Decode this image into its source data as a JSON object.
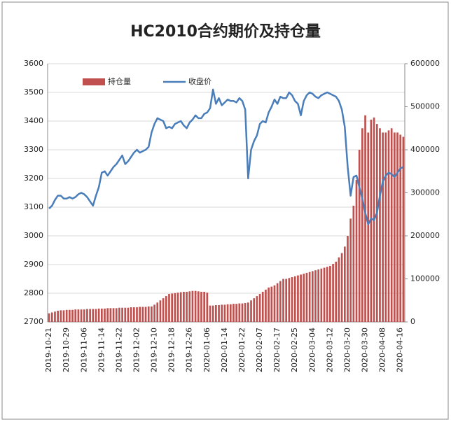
{
  "chart_data": {
    "type": "combo",
    "title": "HC2010合约期价及持仓量",
    "categories": [
      "2019-10-21",
      null,
      null,
      null,
      null,
      null,
      "2019-10-29",
      null,
      null,
      null,
      null,
      null,
      "2019-11-06",
      null,
      null,
      null,
      null,
      null,
      "2019-11-14",
      null,
      null,
      null,
      null,
      null,
      "2019-11-22",
      null,
      null,
      null,
      null,
      null,
      "2019-12-02",
      null,
      null,
      null,
      null,
      null,
      "2019-12-10",
      null,
      null,
      null,
      null,
      null,
      "2019-12-18",
      null,
      null,
      null,
      null,
      null,
      "2019-12-26",
      null,
      null,
      null,
      null,
      null,
      "2020-01-06",
      null,
      null,
      null,
      null,
      null,
      "2020-01-14",
      null,
      null,
      null,
      null,
      null,
      "2020-01-22",
      null,
      null,
      null,
      null,
      null,
      "2020-02-07",
      null,
      null,
      null,
      null,
      null,
      "2020-02-17",
      null,
      null,
      null,
      null,
      null,
      "2020-02-25",
      null,
      null,
      null,
      null,
      null,
      "2020-03-04",
      null,
      null,
      null,
      null,
      null,
      "2020-03-12",
      null,
      null,
      null,
      null,
      null,
      "2020-03-20",
      null,
      null,
      null,
      null,
      null,
      "2020-03-30",
      null,
      null,
      null,
      null,
      null,
      "2020-04-08",
      null,
      null,
      null,
      null,
      null,
      "2020-04-16",
      null
    ],
    "series": [
      {
        "name": "持仓量",
        "type": "bar",
        "axis": "y2",
        "color": "#c0504d",
        "values": [
          20000,
          22000,
          24000,
          26000,
          27000,
          27000,
          28000,
          28000,
          28000,
          29000,
          29000,
          29000,
          29000,
          30000,
          30000,
          30000,
          30000,
          31000,
          31000,
          31000,
          32000,
          32000,
          32000,
          32000,
          33000,
          33000,
          33000,
          33000,
          34000,
          34000,
          34000,
          35000,
          35000,
          35000,
          36000,
          36000,
          40000,
          45000,
          50000,
          55000,
          60000,
          65000,
          66000,
          67000,
          68000,
          69000,
          70000,
          70000,
          71000,
          72000,
          72000,
          71000,
          70000,
          70000,
          68000,
          38000,
          38000,
          39000,
          39000,
          40000,
          40000,
          41000,
          41000,
          42000,
          42000,
          43000,
          43000,
          44000,
          45000,
          50000,
          55000,
          60000,
          65000,
          70000,
          75000,
          80000,
          82000,
          85000,
          90000,
          95000,
          100000,
          100000,
          102000,
          104000,
          106000,
          108000,
          110000,
          112000,
          114000,
          116000,
          118000,
          120000,
          122000,
          124000,
          126000,
          128000,
          130000,
          135000,
          140000,
          150000,
          160000,
          175000,
          200000,
          240000,
          270000,
          330000,
          400000,
          450000,
          480000,
          440000,
          470000,
          475000,
          460000,
          450000,
          440000,
          440000,
          445000,
          450000,
          440000,
          440000,
          435000,
          430000
        ]
      },
      {
        "name": "收盘价",
        "type": "line",
        "color": "#4a7ebb",
        "values": [
          3095,
          3105,
          3125,
          3140,
          3140,
          3130,
          3130,
          3135,
          3130,
          3135,
          3145,
          3150,
          3145,
          3135,
          3120,
          3105,
          3140,
          3170,
          3220,
          3225,
          3210,
          3225,
          3240,
          3250,
          3265,
          3280,
          3250,
          3260,
          3275,
          3290,
          3300,
          3290,
          3295,
          3300,
          3310,
          3360,
          3390,
          3410,
          3405,
          3400,
          3375,
          3380,
          3375,
          3390,
          3395,
          3400,
          3385,
          3375,
          3395,
          3405,
          3420,
          3410,
          3410,
          3425,
          3430,
          3445,
          3510,
          3460,
          3480,
          3455,
          3465,
          3475,
          3470,
          3470,
          3465,
          3480,
          3470,
          3440,
          3200,
          3300,
          3330,
          3350,
          3390,
          3400,
          3395,
          3430,
          3450,
          3475,
          3460,
          3485,
          3480,
          3480,
          3500,
          3490,
          3470,
          3460,
          3420,
          3470,
          3490,
          3500,
          3495,
          3485,
          3480,
          3490,
          3495,
          3500,
          3495,
          3490,
          3485,
          3470,
          3440,
          3380,
          3240,
          3140,
          3205,
          3210,
          3170,
          3130,
          3080,
          3040,
          3060,
          3055,
          3080,
          3140,
          3190,
          3210,
          3220,
          3215,
          3205,
          3220,
          3235,
          3240
        ]
      }
    ],
    "ylim": [
      2700,
      3600
    ],
    "yticks": [
      2700,
      2800,
      2900,
      3000,
      3100,
      3200,
      3300,
      3400,
      3500,
      3600
    ],
    "y2lim": [
      0,
      600000
    ],
    "y2ticks": [
      0,
      100000,
      200000,
      300000,
      400000,
      500000,
      600000
    ],
    "grid": true,
    "legend": "top-left"
  }
}
